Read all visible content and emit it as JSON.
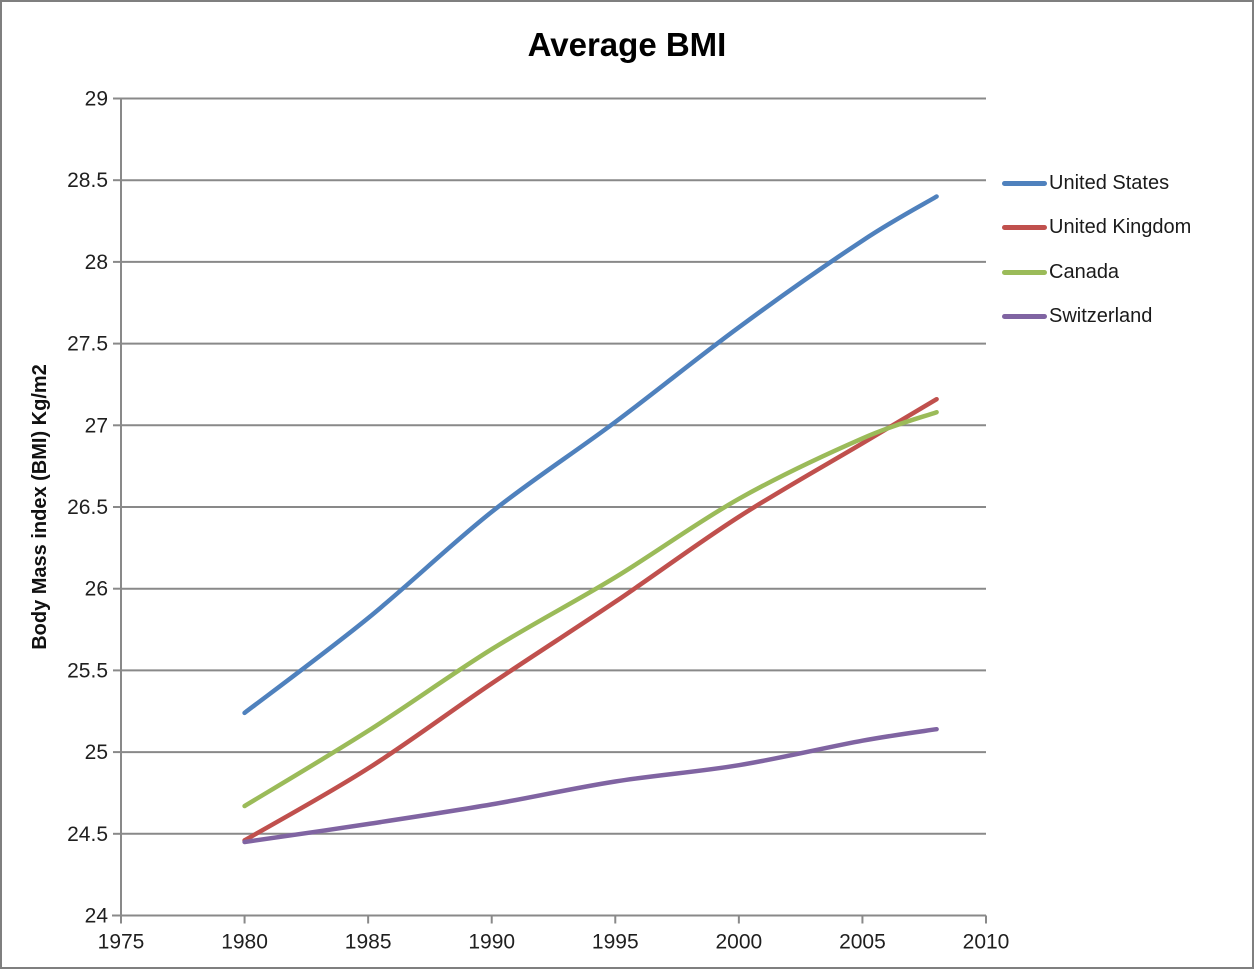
{
  "chart_data": {
    "type": "line",
    "title": "Average BMI",
    "xlabel": "",
    "ylabel": "Body Mass index (BMI) Kg/m2",
    "x": [
      1980,
      1985,
      1990,
      1995,
      2000,
      2005,
      2008
    ],
    "series": [
      {
        "name": "United States",
        "color": "#4F81BD",
        "values": [
          25.24,
          25.82,
          26.47,
          27.02,
          27.6,
          28.13,
          28.4
        ]
      },
      {
        "name": "United Kingdom",
        "color": "#C0504D",
        "values": [
          24.46,
          24.9,
          25.42,
          25.92,
          26.44,
          26.89,
          27.16
        ]
      },
      {
        "name": "Canada",
        "color": "#9BBB59",
        "values": [
          24.67,
          25.13,
          25.63,
          26.07,
          26.55,
          26.92,
          27.08
        ]
      },
      {
        "name": "Switzerland",
        "color": "#8064A2",
        "values": [
          24.45,
          24.56,
          24.68,
          24.82,
          24.92,
          25.07,
          25.14
        ]
      }
    ],
    "xlim": [
      1975,
      2010
    ],
    "ylim": [
      24,
      29
    ],
    "xticks": [
      1975,
      1980,
      1985,
      1990,
      1995,
      2000,
      2005,
      2010
    ],
    "yticks": [
      24,
      24.5,
      25,
      25.5,
      26,
      26.5,
      27,
      27.5,
      28,
      28.5,
      29
    ],
    "grid": "horizontal",
    "legend_position": "right",
    "style": {
      "grid_color": "#898989",
      "axis_color": "#898989",
      "tick_label_color": "#1f1f1f",
      "line_width": 4.5
    }
  }
}
